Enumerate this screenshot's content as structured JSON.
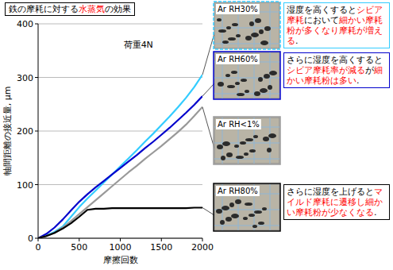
{
  "chart_data": {
    "type": "line",
    "title": [
      {
        "text": "鉄の摩耗に対する"
      },
      {
        "text": "水蒸気",
        "color": "#ff0000"
      },
      {
        "text": "の効果"
      }
    ],
    "xlabel": "摩擦回数",
    "ylabel": "軸間距離の接近量, μm",
    "note": "荷重4N",
    "x": [
      0,
      100,
      200,
      300,
      400,
      500,
      600,
      700,
      800,
      900,
      1000,
      1100,
      1200,
      1300,
      1400,
      1500,
      1600,
      1700,
      1800,
      1900,
      2000
    ],
    "series": [
      {
        "name": "Ar RH30%",
        "color": "#33ccff",
        "values": [
          0,
          5,
          12,
          22,
          40,
          58,
          74,
          89,
          104,
          119,
          134,
          149,
          164,
          180,
          195,
          211,
          227,
          244,
          262,
          282,
          305
        ]
      },
      {
        "name": "Ar RH60%",
        "color": "#0000cc",
        "values": [
          0,
          8,
          20,
          35,
          52,
          68,
          82,
          95,
          107,
          119,
          131,
          143,
          155,
          168,
          180,
          193,
          206,
          220,
          234,
          249,
          265
        ]
      },
      {
        "name": "Ar RH<1%",
        "color": "#999999",
        "values": [
          0,
          4,
          10,
          20,
          32,
          45,
          58,
          71,
          84,
          97,
          110,
          123,
          135,
          148,
          160,
          172,
          185,
          198,
          212,
          228,
          245
        ]
      },
      {
        "name": "Ar RH80%",
        "color": "#000000",
        "values": [
          0,
          4,
          10,
          18,
          28,
          40,
          53,
          55,
          55,
          56,
          56,
          56,
          56,
          56,
          56,
          56,
          56,
          56,
          56,
          57,
          57
        ]
      }
    ],
    "xlim": [
      0,
      2000
    ],
    "xticks": [
      0,
      500,
      1000,
      1500,
      2000
    ],
    "ylim": [
      0,
      400
    ],
    "yticks": [
      0,
      100,
      200,
      300,
      400
    ],
    "grid": true,
    "annotations": [
      {
        "color": "#33ccff",
        "segments": [
          {
            "text": "湿度を高くすると"
          },
          {
            "text": "シビア摩耗",
            "color": "#ff0000"
          },
          {
            "text": "において"
          },
          {
            "text": "細かい摩耗粉が多くなり",
            "color": "#ff0000"
          },
          {
            "text": "摩耗が増える",
            "color": "#ff0000"
          },
          {
            "text": "."
          }
        ]
      },
      {
        "color": "#0000cc",
        "segments": [
          {
            "text": "さらに湿度を高くすると"
          },
          {
            "text": "シビア摩耗率が減る",
            "color": "#ff0000"
          },
          {
            "text": "が"
          },
          {
            "text": "細かい摩耗粉は多い",
            "color": "#ff0000"
          },
          {
            "text": "."
          }
        ]
      },
      {
        "color": "#000000",
        "segments": [
          {
            "text": "さらに湿度を上げると"
          },
          {
            "text": "マイルド摩耗に遷移し",
            "color": "#ff0000"
          },
          {
            "text": "細かい摩耗粉が少なくなる",
            "color": "#ff0000"
          },
          {
            "text": "."
          }
        ]
      }
    ]
  }
}
